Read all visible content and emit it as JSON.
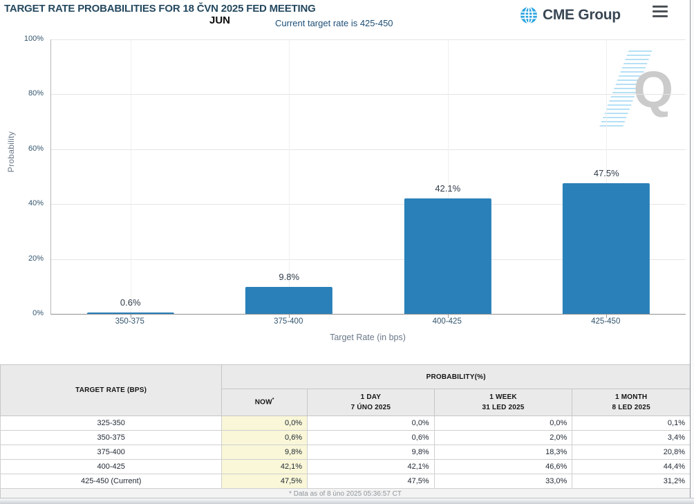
{
  "header": {
    "title": "TARGET RATE PROBABILITIES FOR 18 ČVN 2025 FED MEETING",
    "month_label": "JUN",
    "current_rate_note": "Current target rate is 425-450",
    "brand_name": "CME Group",
    "icons": {
      "logo": "globe-icon",
      "menu": "hamburger-icon",
      "watermark": "quikstrike-q-watermark"
    }
  },
  "chart_data": {
    "type": "bar",
    "categories": [
      "350-375",
      "375-400",
      "400-425",
      "425-450"
    ],
    "values": [
      0.6,
      9.8,
      42.1,
      47.5
    ],
    "bar_labels": [
      "0.6%",
      "9.8%",
      "42.1%",
      "47.5%"
    ],
    "xlabel": "Target Rate (in bps)",
    "ylabel": "Probability",
    "ylim": [
      0,
      100
    ],
    "ytick_labels": [
      "100%",
      "80%",
      "60%",
      "40%",
      "20%",
      "0%"
    ],
    "grid": true,
    "legend": false,
    "bar_color": "#2a80b9",
    "watermark_letter": "Q"
  },
  "table": {
    "col1_header": "TARGET RATE (BPS)",
    "group_header": "PROBABILITY(%)",
    "sub_headers": [
      {
        "line1": "NOW",
        "sup": "*",
        "line2": ""
      },
      {
        "line1": "1 DAY",
        "sup": "",
        "line2": "7 ÚNO 2025"
      },
      {
        "line1": "1 WEEK",
        "sup": "",
        "line2": "31 LED 2025"
      },
      {
        "line1": "1 MONTH",
        "sup": "",
        "line2": "8 LED 2025"
      }
    ],
    "rows": [
      {
        "rate": "325-350",
        "values": [
          "0,0%",
          "0,0%",
          "0,0%",
          "0,1%"
        ]
      },
      {
        "rate": "350-375",
        "values": [
          "0,6%",
          "0,6%",
          "2,0%",
          "3,4%"
        ]
      },
      {
        "rate": "375-400",
        "values": [
          "9,8%",
          "9,8%",
          "18,3%",
          "20,8%"
        ]
      },
      {
        "rate": "400-425",
        "values": [
          "42,1%",
          "42,1%",
          "46,6%",
          "44,4%"
        ]
      },
      {
        "rate": "425-450 (Current)",
        "values": [
          "47,5%",
          "47,5%",
          "33,0%",
          "31,2%"
        ]
      }
    ],
    "footnote": "* Data as of 8 úno 2025 05:36:57 CT",
    "now_col_bg": "#f9f7d8"
  },
  "colors": {
    "title_text": "#24485f",
    "note_text": "#1c4e77",
    "bar": "#2a80b9",
    "now_column": "#f9f7d8",
    "header_bg": "#eaeaea",
    "logo_globe": "#2aa3e0",
    "logo_text": "#3a4754"
  }
}
